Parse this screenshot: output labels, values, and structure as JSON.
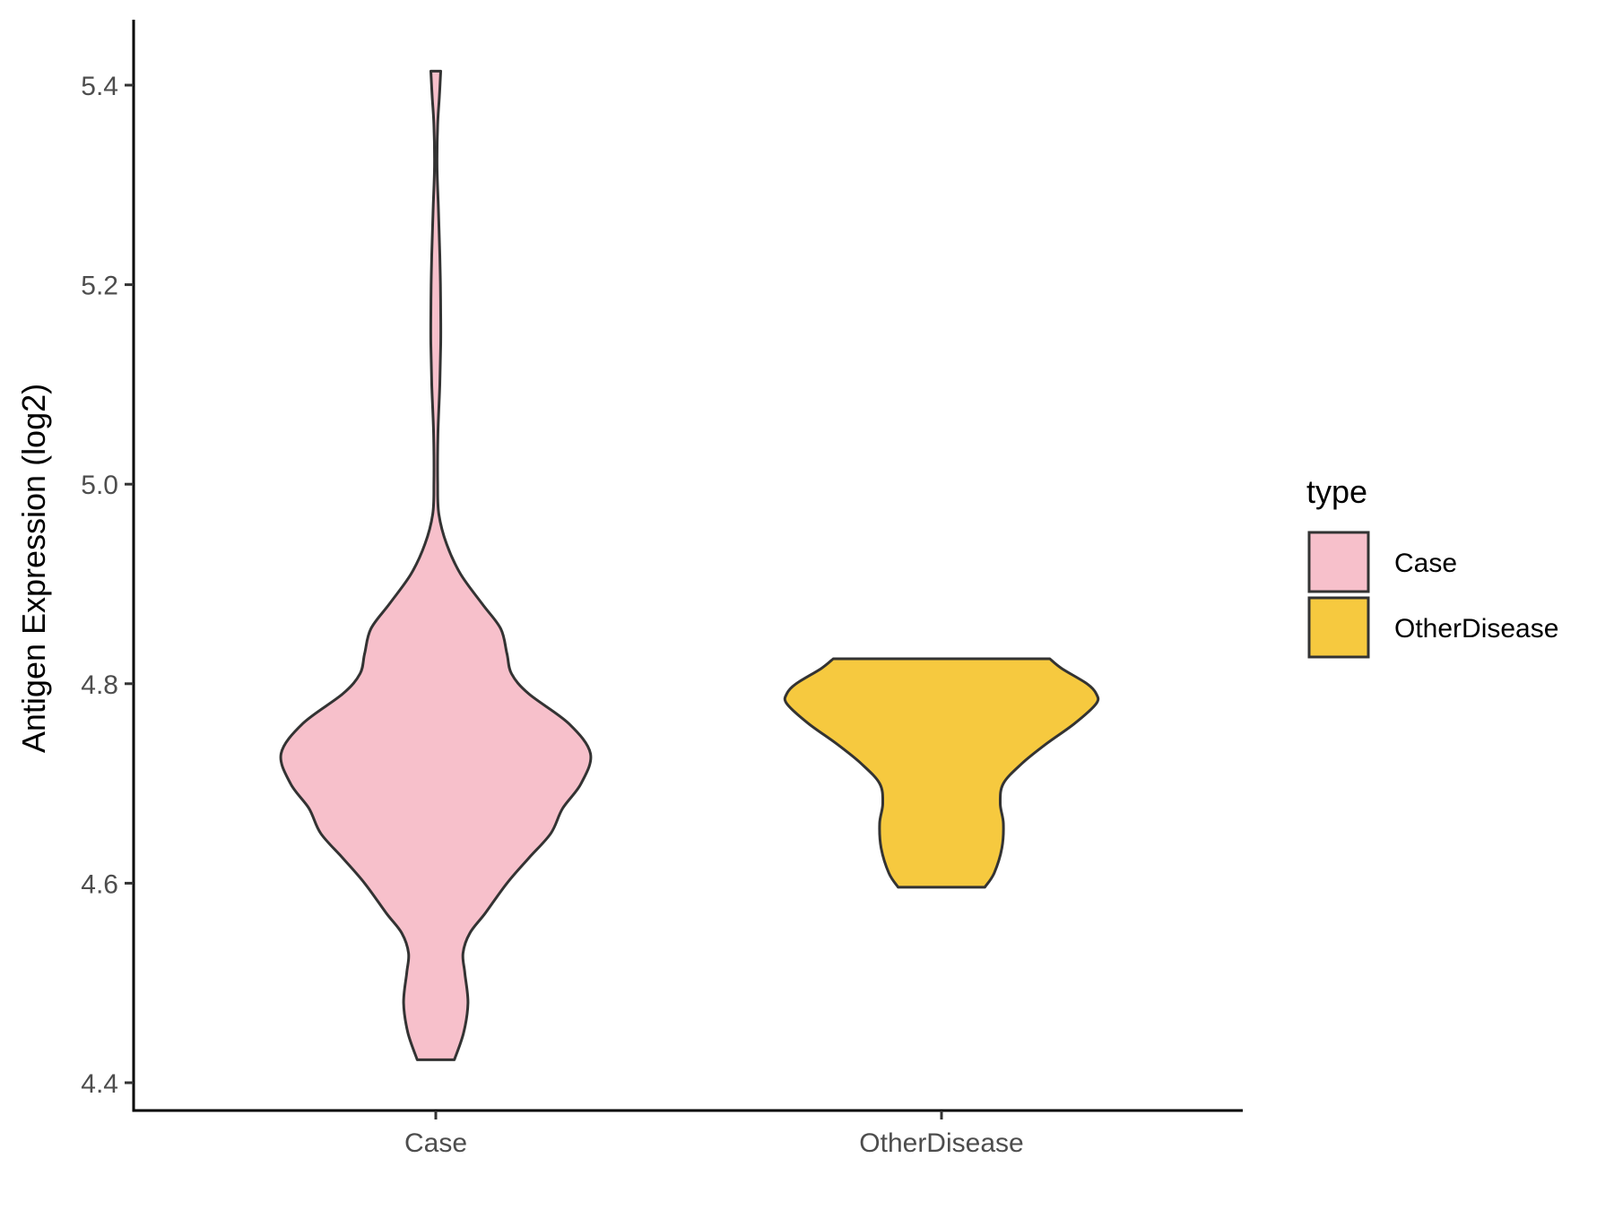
{
  "chart_data": {
    "type": "violin",
    "ylabel": "Antigen Expression (log2)",
    "xlabel": "",
    "categories": [
      "Case",
      "OtherDisease"
    ],
    "y_ticks": [
      "4.4",
      "4.6",
      "4.8",
      "5.0",
      "5.2",
      "5.4"
    ],
    "ylim": [
      4.37,
      5.47
    ],
    "grid": false,
    "legend": {
      "title": "type",
      "position": "right",
      "entries": [
        {
          "label": "Case",
          "color": "#F7C0CB"
        },
        {
          "label": "OtherDisease",
          "color": "#F6C93F"
        }
      ]
    },
    "series": [
      {
        "name": "Case",
        "color": "#F7C0CB",
        "min": 4.423,
        "max": 5.414,
        "density": [
          [
            4.423,
            0.06
          ],
          [
            4.45,
            0.09
          ],
          [
            4.48,
            0.104
          ],
          [
            4.51,
            0.094
          ],
          [
            4.53,
            0.088
          ],
          [
            4.55,
            0.11
          ],
          [
            4.57,
            0.16
          ],
          [
            4.6,
            0.23
          ],
          [
            4.625,
            0.3
          ],
          [
            4.65,
            0.372
          ],
          [
            4.675,
            0.41
          ],
          [
            4.7,
            0.47
          ],
          [
            4.73,
            0.5
          ],
          [
            4.76,
            0.43
          ],
          [
            4.79,
            0.3
          ],
          [
            4.81,
            0.245
          ],
          [
            4.83,
            0.23
          ],
          [
            4.855,
            0.21
          ],
          [
            4.88,
            0.15
          ],
          [
            4.91,
            0.08
          ],
          [
            4.94,
            0.035
          ],
          [
            4.97,
            0.01
          ],
          [
            5.0,
            0.006
          ],
          [
            5.05,
            0.007
          ],
          [
            5.1,
            0.013
          ],
          [
            5.14,
            0.016
          ],
          [
            5.17,
            0.016
          ],
          [
            5.2,
            0.015
          ],
          [
            5.23,
            0.013
          ],
          [
            5.28,
            0.008
          ],
          [
            5.32,
            0.004
          ],
          [
            5.36,
            0.006
          ],
          [
            5.39,
            0.012
          ],
          [
            5.414,
            0.016
          ]
        ]
      },
      {
        "name": "OtherDisease",
        "color": "#F6C93F",
        "min": 4.596,
        "max": 4.825,
        "density": [
          [
            4.596,
            0.14
          ],
          [
            4.61,
            0.17
          ],
          [
            4.635,
            0.195
          ],
          [
            4.66,
            0.2
          ],
          [
            4.68,
            0.19
          ],
          [
            4.7,
            0.2
          ],
          [
            4.72,
            0.26
          ],
          [
            4.74,
            0.34
          ],
          [
            4.76,
            0.43
          ],
          [
            4.78,
            0.5
          ],
          [
            4.79,
            0.5
          ],
          [
            4.8,
            0.47
          ],
          [
            4.815,
            0.39
          ],
          [
            4.825,
            0.35
          ]
        ]
      }
    ]
  }
}
